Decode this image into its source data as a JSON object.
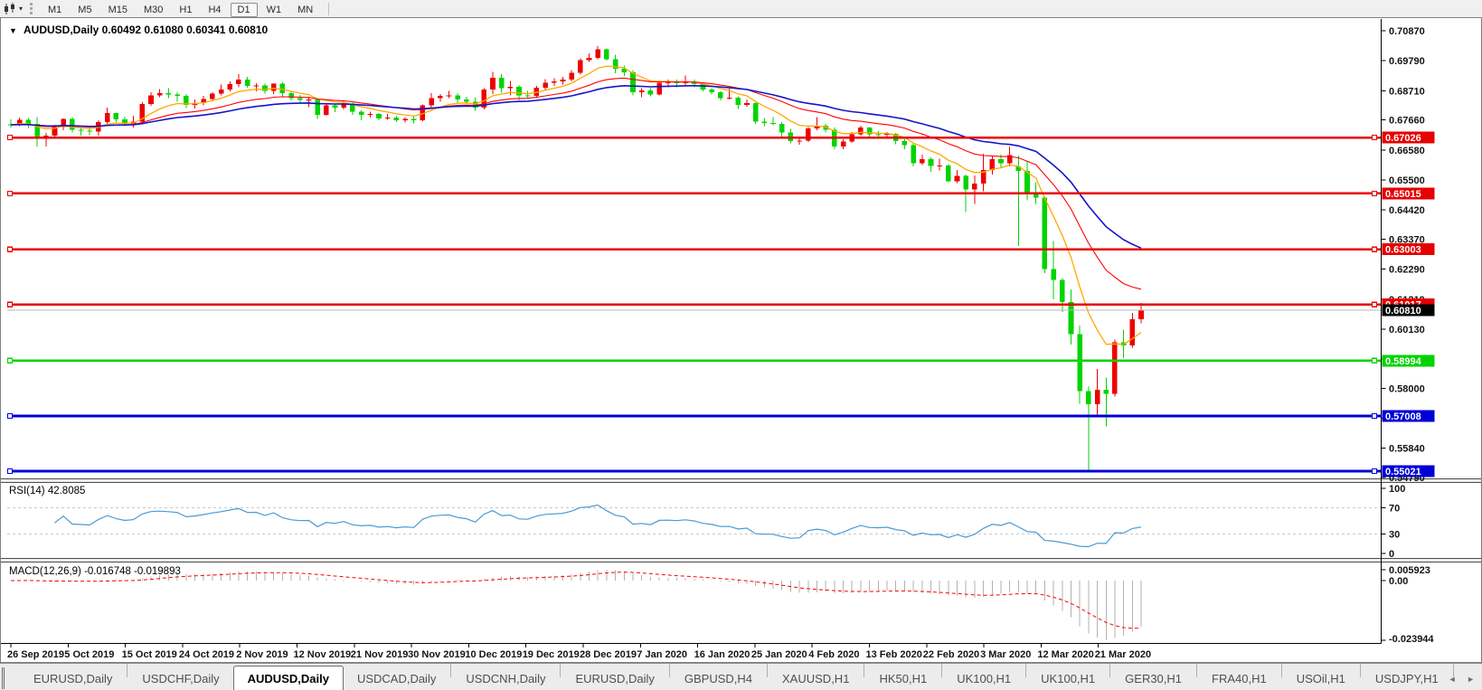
{
  "toolbar": {
    "timeframes": [
      "M1",
      "M5",
      "M15",
      "M30",
      "H1",
      "H4",
      "D1",
      "W1",
      "MN"
    ],
    "active_timeframe": "D1"
  },
  "window": {
    "title_marker": "▼",
    "symbol_title": "AUDUSD,Daily",
    "ohlc": {
      "open": "0.60492",
      "high": "0.61080",
      "low": "0.60341",
      "close": "0.60810"
    }
  },
  "price_axis": {
    "ticks": [
      "0.70870",
      "0.69790",
      "0.68710",
      "0.67660",
      "0.66580",
      "0.65500",
      "0.64420",
      "0.63370",
      "0.62290",
      "0.61210",
      "0.60130",
      "0.59050",
      "0.58000",
      "0.56920",
      "0.55840",
      "0.54790"
    ],
    "current_price_label": "0.60810"
  },
  "levels": [
    {
      "label": "0.67026",
      "value": 0.67026,
      "color": "#e60000",
      "width": 2.4
    },
    {
      "label": "0.65015",
      "value": 0.65015,
      "color": "#e60000",
      "width": 2.4
    },
    {
      "label": "0.63003",
      "value": 0.63003,
      "color": "#e60000",
      "width": 2.4
    },
    {
      "label": "0.61017",
      "value": 0.61017,
      "color": "#e60000",
      "width": 2.4
    },
    {
      "label": "0.58994",
      "value": 0.58994,
      "color": "#00d300",
      "width": 2.8
    },
    {
      "label": "0.57008",
      "value": 0.57008,
      "color": "#0000d6",
      "width": 2.8
    },
    {
      "label": "0.55021",
      "value": 0.55021,
      "color": "#0000d6",
      "width": 2.8
    }
  ],
  "current_price": {
    "value": 0.6081,
    "label": "0.60810",
    "line_color": "#b8b8b8",
    "label_bg": "#000000"
  },
  "rsi": {
    "label": "RSI(14) 42.8085",
    "value": 42.8085,
    "axis_labels": [
      "100",
      "70",
      "30",
      "0"
    ],
    "dashed_levels": [
      70,
      30
    ],
    "color": "#4a9ad4"
  },
  "macd": {
    "label": "MACD(12,26,9) -0.016748 -0.019893",
    "main_value": -0.016748,
    "signal_value": -0.019893,
    "axis_labels": [
      "0.005923",
      "0.00",
      "-0.023944"
    ],
    "hist_color": "#b2b2b2",
    "signal_color": "#ff0000"
  },
  "tabs": {
    "items": [
      "EURUSD,Daily",
      "USDCHF,Daily",
      "AUDUSD,Daily",
      "USDCAD,Daily",
      "USDCNH,Daily",
      "EURUSD,Daily",
      "GBPUSD,H4",
      "XAUUSD,H1",
      "HK50,H1",
      "UK100,H1",
      "UK100,H1",
      "GER30,H1",
      "FRA40,H1",
      "USOil,H1",
      "USDJPY,H1"
    ],
    "active_index": 2,
    "scroll_left_icon": "◄",
    "scroll_right_icon": "►"
  },
  "colors": {
    "bull": "#ed0000",
    "bear": "#00d400",
    "ma_fast": "#ffa800",
    "ma_mid": "#ff0000",
    "ma_slow": "#1515c8"
  },
  "chart_data": {
    "type": "candlestick",
    "symbol": "AUDUSD",
    "timeframe": "Daily",
    "title": "AUDUSD,Daily 0.60492 0.61080 0.60341 0.60810",
    "ylim": [
      0.5479,
      0.7087
    ],
    "grid": false,
    "x_labels": [
      "26 Sep 2019",
      "5 Oct 2019",
      "15 Oct 2019",
      "24 Oct 2019",
      "2 Nov 2019",
      "12 Nov 2019",
      "21 Nov 2019",
      "30 Nov 2019",
      "10 Dec 2019",
      "19 Dec 2019",
      "28 Dec 2019",
      "7 Jan 2020",
      "16 Jan 2020",
      "25 Jan 2020",
      "4 Feb 2020",
      "13 Feb 2020",
      "22 Feb 2020",
      "3 Mar 2020",
      "12 Mar 2020",
      "21 Mar 2020"
    ],
    "horizontal_levels": [
      0.67026,
      0.65015,
      0.63003,
      0.61017,
      0.58994,
      0.57008,
      0.55021
    ],
    "current_price": 0.6081,
    "ohlc": [
      [
        0.675,
        0.6768,
        0.6738,
        0.6748
      ],
      [
        0.6748,
        0.6774,
        0.6744,
        0.6767
      ],
      [
        0.6767,
        0.6773,
        0.6736,
        0.6752
      ],
      [
        0.6752,
        0.6776,
        0.667,
        0.6705
      ],
      [
        0.6705,
        0.6719,
        0.6671,
        0.6709
      ],
      [
        0.6709,
        0.6748,
        0.6698,
        0.6741
      ],
      [
        0.6741,
        0.6772,
        0.6729,
        0.677
      ],
      [
        0.677,
        0.6776,
        0.6721,
        0.673
      ],
      [
        0.673,
        0.6739,
        0.671,
        0.6727
      ],
      [
        0.6727,
        0.6745,
        0.6711,
        0.6724
      ],
      [
        0.6724,
        0.6765,
        0.6709,
        0.6758
      ],
      [
        0.6758,
        0.6811,
        0.6751,
        0.679
      ],
      [
        0.679,
        0.6792,
        0.6759,
        0.6768
      ],
      [
        0.6768,
        0.6778,
        0.6744,
        0.6752
      ],
      [
        0.6752,
        0.6781,
        0.6739,
        0.676
      ],
      [
        0.676,
        0.683,
        0.6754,
        0.6823
      ],
      [
        0.6823,
        0.6865,
        0.6817,
        0.6855
      ],
      [
        0.6855,
        0.6877,
        0.6847,
        0.6862
      ],
      [
        0.6862,
        0.688,
        0.6844,
        0.6858
      ],
      [
        0.6858,
        0.6866,
        0.6831,
        0.6852
      ],
      [
        0.6852,
        0.6859,
        0.6809,
        0.682
      ],
      [
        0.682,
        0.6839,
        0.6807,
        0.6827
      ],
      [
        0.6827,
        0.6852,
        0.6819,
        0.6842
      ],
      [
        0.6842,
        0.6866,
        0.6835,
        0.686
      ],
      [
        0.686,
        0.6893,
        0.6855,
        0.6875
      ],
      [
        0.6875,
        0.6905,
        0.6869,
        0.6895
      ],
      [
        0.6895,
        0.693,
        0.6884,
        0.6912
      ],
      [
        0.6912,
        0.6921,
        0.6882,
        0.6888
      ],
      [
        0.6888,
        0.6899,
        0.6869,
        0.689
      ],
      [
        0.689,
        0.6896,
        0.6861,
        0.687
      ],
      [
        0.687,
        0.6898,
        0.6859,
        0.6896
      ],
      [
        0.6896,
        0.6901,
        0.6851,
        0.6862
      ],
      [
        0.6862,
        0.6871,
        0.6836,
        0.6845
      ],
      [
        0.6845,
        0.6856,
        0.6829,
        0.6838
      ],
      [
        0.6838,
        0.6846,
        0.6812,
        0.684
      ],
      [
        0.684,
        0.6845,
        0.6769,
        0.6785
      ],
      [
        0.6785,
        0.6826,
        0.6781,
        0.6818
      ],
      [
        0.6818,
        0.6821,
        0.6794,
        0.681
      ],
      [
        0.681,
        0.6833,
        0.6804,
        0.6825
      ],
      [
        0.6825,
        0.6829,
        0.6784,
        0.6795
      ],
      [
        0.6795,
        0.6801,
        0.6764,
        0.6785
      ],
      [
        0.6785,
        0.6796,
        0.6774,
        0.6788
      ],
      [
        0.6788,
        0.6791,
        0.6764,
        0.6772
      ],
      [
        0.6772,
        0.6788,
        0.6767,
        0.6775
      ],
      [
        0.6775,
        0.6781,
        0.6759,
        0.6765
      ],
      [
        0.6765,
        0.6776,
        0.6757,
        0.677
      ],
      [
        0.677,
        0.6781,
        0.6754,
        0.6765
      ],
      [
        0.6765,
        0.6822,
        0.6761,
        0.6818
      ],
      [
        0.6818,
        0.6862,
        0.6811,
        0.6845
      ],
      [
        0.6845,
        0.6859,
        0.6831,
        0.6852
      ],
      [
        0.6852,
        0.6871,
        0.6844,
        0.6855
      ],
      [
        0.6855,
        0.6863,
        0.6829,
        0.684
      ],
      [
        0.684,
        0.6849,
        0.6824,
        0.6832
      ],
      [
        0.6832,
        0.6846,
        0.6799,
        0.681
      ],
      [
        0.681,
        0.688,
        0.6804,
        0.6875
      ],
      [
        0.6875,
        0.6939,
        0.6859,
        0.6917
      ],
      [
        0.6917,
        0.6931,
        0.6864,
        0.688
      ],
      [
        0.688,
        0.6906,
        0.6854,
        0.6885
      ],
      [
        0.6885,
        0.6891,
        0.6837,
        0.6855
      ],
      [
        0.6855,
        0.6871,
        0.6844,
        0.6852
      ],
      [
        0.6852,
        0.6889,
        0.6847,
        0.6882
      ],
      [
        0.6882,
        0.6913,
        0.6874,
        0.69
      ],
      [
        0.69,
        0.6916,
        0.6889,
        0.6905
      ],
      [
        0.6905,
        0.6921,
        0.6894,
        0.6912
      ],
      [
        0.6912,
        0.6946,
        0.6904,
        0.6935
      ],
      [
        0.6935,
        0.6988,
        0.6929,
        0.6982
      ],
      [
        0.6982,
        0.7006,
        0.6974,
        0.699
      ],
      [
        0.699,
        0.7032,
        0.6984,
        0.7021
      ],
      [
        0.7021,
        0.7024,
        0.6979,
        0.6985
      ],
      [
        0.6985,
        0.7001,
        0.6934,
        0.695
      ],
      [
        0.695,
        0.6961,
        0.6924,
        0.6938
      ],
      [
        0.6938,
        0.6946,
        0.6854,
        0.6865
      ],
      [
        0.6865,
        0.6881,
        0.6847,
        0.6872
      ],
      [
        0.6872,
        0.6881,
        0.6851,
        0.6858
      ],
      [
        0.6858,
        0.6906,
        0.6854,
        0.69
      ],
      [
        0.69,
        0.6911,
        0.6884,
        0.6902
      ],
      [
        0.6902,
        0.6911,
        0.6884,
        0.6898
      ],
      [
        0.6898,
        0.6926,
        0.6887,
        0.6905
      ],
      [
        0.6905,
        0.6911,
        0.6884,
        0.6895
      ],
      [
        0.6895,
        0.6901,
        0.6869,
        0.6875
      ],
      [
        0.6875,
        0.6881,
        0.6857,
        0.6865
      ],
      [
        0.6865,
        0.6871,
        0.6836,
        0.6845
      ],
      [
        0.6845,
        0.6879,
        0.6839,
        0.6846
      ],
      [
        0.6846,
        0.6851,
        0.6806,
        0.682
      ],
      [
        0.682,
        0.6839,
        0.6814,
        0.6826
      ],
      [
        0.6826,
        0.6829,
        0.6751,
        0.676
      ],
      [
        0.676,
        0.6773,
        0.6743,
        0.6755
      ],
      [
        0.6755,
        0.6776,
        0.6747,
        0.6752
      ],
      [
        0.6752,
        0.6759,
        0.6699,
        0.672
      ],
      [
        0.672,
        0.6734,
        0.6681,
        0.669
      ],
      [
        0.669,
        0.6706,
        0.6677,
        0.6692
      ],
      [
        0.6692,
        0.6741,
        0.6687,
        0.6735
      ],
      [
        0.6735,
        0.6776,
        0.6729,
        0.6745
      ],
      [
        0.6745,
        0.6751,
        0.6721,
        0.673
      ],
      [
        0.673,
        0.6739,
        0.6661,
        0.667
      ],
      [
        0.667,
        0.6696,
        0.6661,
        0.6688
      ],
      [
        0.6688,
        0.6723,
        0.6684,
        0.6715
      ],
      [
        0.6715,
        0.6746,
        0.6709,
        0.6738
      ],
      [
        0.6738,
        0.6741,
        0.6704,
        0.6715
      ],
      [
        0.6715,
        0.6726,
        0.6699,
        0.6712
      ],
      [
        0.6712,
        0.6723,
        0.6704,
        0.6716
      ],
      [
        0.6716,
        0.6719,
        0.6679,
        0.669
      ],
      [
        0.669,
        0.6696,
        0.6661,
        0.6675
      ],
      [
        0.6675,
        0.6681,
        0.6599,
        0.661
      ],
      [
        0.661,
        0.6641,
        0.6604,
        0.6625
      ],
      [
        0.6625,
        0.6631,
        0.6579,
        0.66
      ],
      [
        0.66,
        0.6626,
        0.6584,
        0.6602
      ],
      [
        0.6602,
        0.6607,
        0.6541,
        0.6545
      ],
      [
        0.6545,
        0.6586,
        0.6539,
        0.6565
      ],
      [
        0.6565,
        0.6569,
        0.6434,
        0.6515
      ],
      [
        0.6515,
        0.6566,
        0.6464,
        0.6537
      ],
      [
        0.6537,
        0.6645,
        0.6509,
        0.6585
      ],
      [
        0.6585,
        0.6636,
        0.6569,
        0.6625
      ],
      [
        0.6625,
        0.6641,
        0.6594,
        0.661
      ],
      [
        0.661,
        0.667,
        0.6599,
        0.664
      ],
      [
        0.6598,
        0.6637,
        0.6313,
        0.6583
      ],
      [
        0.6583,
        0.6619,
        0.6477,
        0.65
      ],
      [
        0.65,
        0.6541,
        0.6464,
        0.6487
      ],
      [
        0.6487,
        0.649,
        0.6214,
        0.623
      ],
      [
        0.623,
        0.6331,
        0.6121,
        0.619
      ],
      [
        0.619,
        0.6196,
        0.6074,
        0.611
      ],
      [
        0.611,
        0.6156,
        0.5957,
        0.5995
      ],
      [
        0.5995,
        0.6026,
        0.5744,
        0.579
      ],
      [
        0.579,
        0.5806,
        0.5506,
        0.5742
      ],
      [
        0.5742,
        0.5869,
        0.5701,
        0.5795
      ],
      [
        0.5795,
        0.5839,
        0.5663,
        0.578
      ],
      [
        0.578,
        0.5976,
        0.5771,
        0.5965
      ],
      [
        0.5965,
        0.6011,
        0.5909,
        0.5955
      ],
      [
        0.5955,
        0.6071,
        0.5946,
        0.6049
      ],
      [
        0.60492,
        0.6108,
        0.60341,
        0.6081
      ]
    ]
  }
}
